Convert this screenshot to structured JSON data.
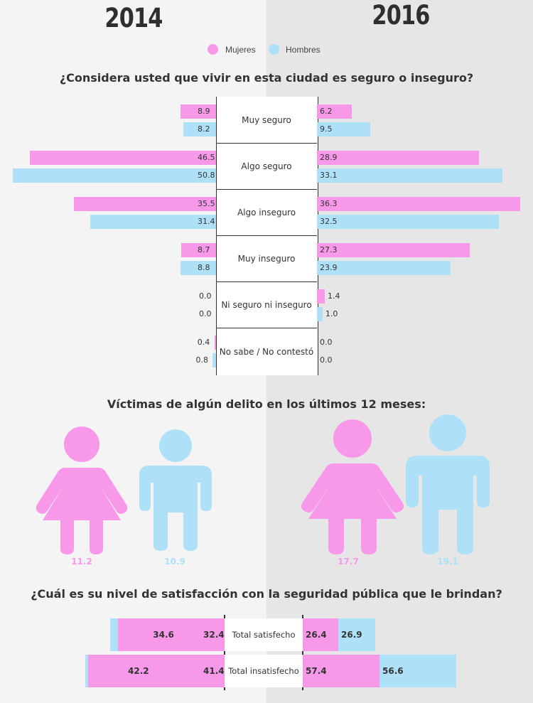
{
  "years": {
    "left": "2014",
    "right": "2016"
  },
  "legend": {
    "women": "Mujeres",
    "men": "Hombres"
  },
  "colors": {
    "women": "#f799e8",
    "men": "#aee1f7",
    "bg_left": "#f4f4f4",
    "bg_right": "#e6e6e6"
  },
  "chart_data": [
    {
      "type": "bar",
      "title": "¿Considera usted que vivir en esta ciudad es seguro o inseguro?",
      "categories": [
        "Muy seguro",
        "Algo seguro",
        "Algo inseguro",
        "Muy inseguro",
        "Ni seguro ni inseguro",
        "No sabe / No contestó"
      ],
      "series": [
        {
          "name": "Mujeres",
          "year": "2014",
          "values": [
            8.9,
            46.5,
            35.5,
            8.7,
            0.0,
            0.4
          ],
          "labels": [
            "8.9",
            "46.5",
            "35.5",
            "8.7",
            "0.0",
            "0.4"
          ]
        },
        {
          "name": "Hombres",
          "year": "2014",
          "values": [
            8.2,
            50.8,
            31.4,
            8.8,
            0.0,
            0.8
          ],
          "labels": [
            "8.2",
            "50.8",
            "31.4",
            "8.8",
            "0.0",
            "0.8"
          ]
        },
        {
          "name": "Mujeres",
          "year": "2016",
          "values": [
            6.2,
            28.9,
            36.3,
            27.3,
            1.4,
            0.0
          ],
          "labels": [
            "6.2",
            "28.9",
            "36.3",
            "27.3",
            "1.4",
            "0.0"
          ]
        },
        {
          "name": "Hombres",
          "year": "2016",
          "values": [
            9.5,
            33.1,
            32.5,
            23.9,
            1.0,
            0.0
          ],
          "labels": [
            "9.5",
            "33.1",
            "32.5",
            "23.9",
            "1.0",
            "0.0"
          ]
        }
      ]
    },
    {
      "type": "bar",
      "title": "Víctimas de algún delito en los últimos 12 meses:",
      "categories": [
        "Mujeres 2014",
        "Hombres 2014",
        "Mujeres 2016",
        "Hombres 2016"
      ],
      "values": [
        11.2,
        10.9,
        17.7,
        19.1
      ],
      "labels": [
        "11.2",
        "10.9",
        "17.7",
        "19.1"
      ]
    },
    {
      "type": "bar",
      "title": "¿Cuál es su nivel de satisfacción con la seguridad pública que le brindan?",
      "categories": [
        "Total satisfecho",
        "Total insatisfecho"
      ],
      "series": [
        {
          "name": "Hombres",
          "year": "2014",
          "values": [
            34.6,
            42.2
          ],
          "labels": [
            "34.6",
            "42.2"
          ]
        },
        {
          "name": "Mujeres",
          "year": "2014",
          "values": [
            32.4,
            41.4
          ],
          "labels": [
            "32.4",
            "41.4"
          ]
        },
        {
          "name": "Mujeres",
          "year": "2016",
          "values": [
            26.4,
            57.4
          ],
          "labels": [
            "26.4",
            "57.4"
          ]
        },
        {
          "name": "Hombres",
          "year": "2016",
          "values": [
            26.9,
            56.6
          ],
          "labels": [
            "26.9",
            "56.6"
          ]
        }
      ]
    }
  ]
}
